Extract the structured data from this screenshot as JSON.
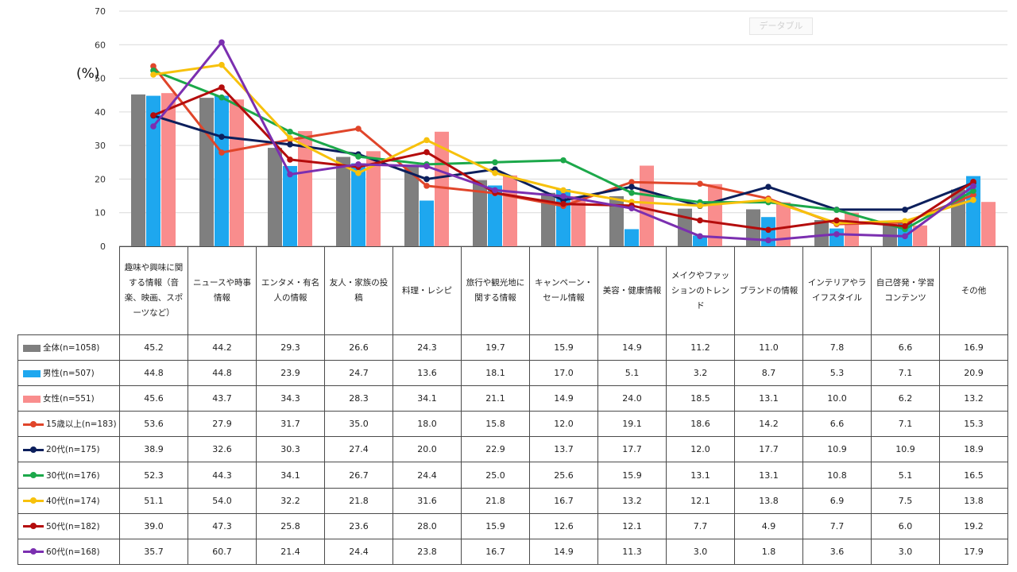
{
  "chart_data": {
    "type": "bar+line",
    "unit_label": "(%)",
    "ylim": [
      0,
      70
    ],
    "yticks": [
      0,
      10,
      20,
      30,
      40,
      50,
      60,
      70
    ],
    "grid": true,
    "categories": [
      "趣味や興味に関する情報（音楽、映画、スポーツなど）",
      "ニュースや時事情報",
      "エンタメ・有名人の情報",
      "友人・家族の投稿",
      "料理・レシピ",
      "旅行や観光地に関する情報",
      "キャンペーン・セール情報",
      "美容・健康情報",
      "メイクやファッションのトレンド",
      "ブランドの情報",
      "インテリアやライフスタイル",
      "自己啓発・学習コンテンツ",
      "その他"
    ],
    "bar_series": [
      {
        "name": "全体(n=1058)",
        "color": "#7f7f7f",
        "values": [
          45.2,
          44.2,
          29.3,
          26.6,
          24.3,
          19.7,
          15.9,
          14.9,
          11.2,
          11.0,
          7.8,
          6.6,
          16.9
        ]
      },
      {
        "name": "男性(n=507)",
        "color": "#1ea7ef",
        "values": [
          44.8,
          44.8,
          23.9,
          24.7,
          13.6,
          18.1,
          17.0,
          5.1,
          3.2,
          8.7,
          5.3,
          7.1,
          20.9
        ]
      },
      {
        "name": "女性(n=551)",
        "color": "#f98d8d",
        "values": [
          45.6,
          43.7,
          34.3,
          28.3,
          34.1,
          21.1,
          14.9,
          24.0,
          18.5,
          13.1,
          10.0,
          6.2,
          13.2
        ]
      }
    ],
    "line_series": [
      {
        "name": "15歳以上(n=183)",
        "color": "#e0452a",
        "values": [
          53.6,
          27.9,
          31.7,
          35.0,
          18.0,
          15.8,
          12.0,
          19.1,
          18.6,
          14.2,
          6.6,
          7.1,
          15.3
        ]
      },
      {
        "name": "20代(n=175)",
        "color": "#0c1f5c",
        "values": [
          38.9,
          32.6,
          30.3,
          27.4,
          20.0,
          22.9,
          13.7,
          17.7,
          12.0,
          17.7,
          10.9,
          10.9,
          18.9
        ]
      },
      {
        "name": "30代(n=176)",
        "color": "#1ca84a",
        "values": [
          52.3,
          44.3,
          34.1,
          26.7,
          24.4,
          25.0,
          25.6,
          15.9,
          13.1,
          13.1,
          10.8,
          5.1,
          16.5
        ]
      },
      {
        "name": "40代(n=174)",
        "color": "#f7c10c",
        "values": [
          51.1,
          54.0,
          32.2,
          21.8,
          31.6,
          21.8,
          16.7,
          13.2,
          12.1,
          13.8,
          6.9,
          7.5,
          13.8
        ]
      },
      {
        "name": "50代(n=182)",
        "color": "#b40c0c",
        "values": [
          39.0,
          47.3,
          25.8,
          23.6,
          28.0,
          15.9,
          12.6,
          12.1,
          7.7,
          4.9,
          7.7,
          6.0,
          19.2
        ]
      },
      {
        "name": "60代(n=168)",
        "color": "#7b2fb0",
        "values": [
          35.7,
          60.7,
          21.4,
          24.4,
          23.8,
          16.7,
          14.9,
          11.3,
          3.0,
          1.8,
          3.6,
          3.0,
          17.9
        ]
      }
    ],
    "header_labels": [
      "趣味や興味に関する情報（音楽、映画、スポーツなど）",
      "ニュースや時事情報",
      "エンタメ・有名人の情報",
      "友人・家族の投稿",
      "料理・レシピ",
      "旅行や観光地に関する情報",
      "キャンペーン・セール情報",
      "美容・健康情報",
      "メイクやファッションのトレンド",
      "ブランドの情報",
      "インテリアやライフスタイル",
      "自己啓発・学習コンテンツ",
      "その他"
    ],
    "watermark_text": "データブル"
  }
}
